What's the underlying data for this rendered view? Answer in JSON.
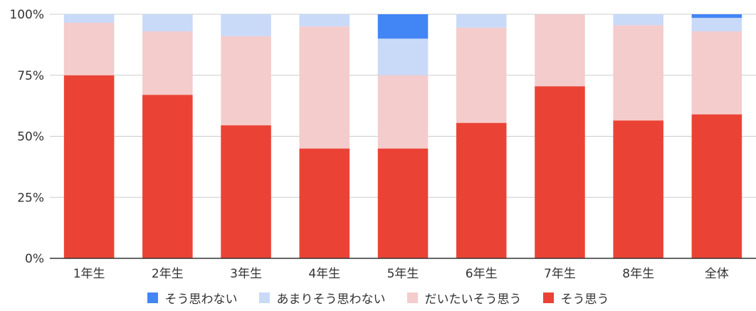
{
  "chart_data": {
    "type": "bar",
    "stacked": "percent",
    "categories": [
      "1年生",
      "2年生",
      "3年生",
      "4年生",
      "5年生",
      "6年生",
      "7年生",
      "8年生",
      "全体"
    ],
    "series": [
      {
        "name": "そう思う",
        "color": "#ea4335",
        "values": [
          75,
          67,
          54.5,
          45,
          45,
          55.5,
          70.5,
          56.5,
          59
        ]
      },
      {
        "name": "だいたいそう思う",
        "color": "#f4cccc",
        "values": [
          21.5,
          26,
          36.5,
          50,
          30,
          39,
          29.5,
          39,
          34
        ]
      },
      {
        "name": "あまりそう思わない",
        "color": "#c9daf8",
        "values": [
          3.5,
          7,
          9,
          5,
          15,
          5.5,
          0,
          4.5,
          5.5
        ]
      },
      {
        "name": "そう思わない",
        "color": "#4285f4",
        "values": [
          0,
          0,
          0,
          0,
          10,
          0,
          0,
          0,
          1.5
        ]
      }
    ],
    "y_ticks": [
      "0%",
      "25%",
      "50%",
      "75%",
      "100%"
    ],
    "ylim": [
      0,
      100
    ],
    "grid": true,
    "legend_position": "bottom",
    "legend_order": [
      "そう思わない",
      "あまりそう思わない",
      "だいたいそう思う",
      "そう思う"
    ]
  }
}
